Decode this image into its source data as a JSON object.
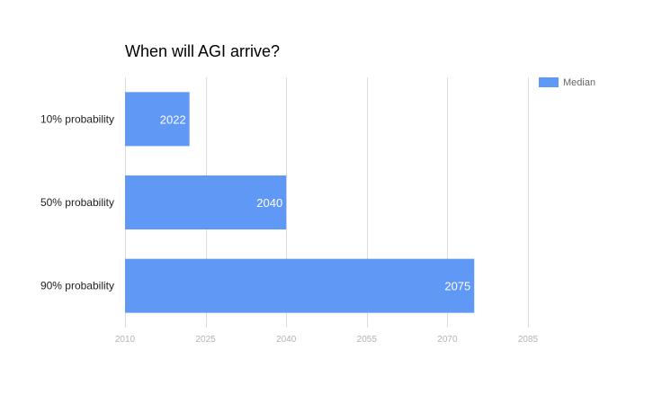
{
  "chart_data": {
    "type": "bar",
    "orientation": "horizontal",
    "title": "When will AGI arrive?",
    "categories": [
      "10% probability",
      "50% probability",
      "90% probability"
    ],
    "series": [
      {
        "name": "Median",
        "values": [
          2022,
          2040,
          2075
        ],
        "data_labels": [
          "2022",
          "2040",
          "2075"
        ]
      }
    ],
    "xlim": [
      2010,
      2085
    ],
    "x_ticks": [
      2010,
      2025,
      2040,
      2055,
      2070,
      2085
    ],
    "x_tick_labels": [
      "2010",
      "2025",
      "2040",
      "2055",
      "2070",
      "2085"
    ],
    "xlabel": "",
    "ylabel": "",
    "grid": true,
    "legend_position": "top-right",
    "colors": {
      "bar": "#5f98f5",
      "grid": "#dcdcdc",
      "tick_text": "#b3b3b3",
      "data_label_text": "#ffffff"
    }
  }
}
